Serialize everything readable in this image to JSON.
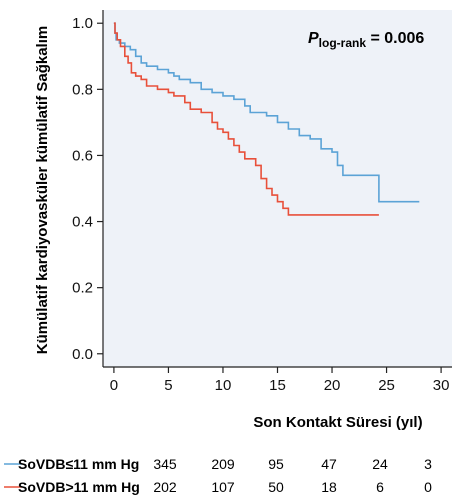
{
  "chart_data": {
    "type": "line",
    "xlabel": "Son Kontakt Süresi (yıl)",
    "ylabel": "Kümülatif kardiyovasküler kümülatif Sağkalım",
    "xlim": [
      -1,
      31
    ],
    "ylim": [
      -0.04,
      1.04
    ],
    "xticks": [
      "0",
      "5",
      "10",
      "15",
      "20",
      "25",
      "30"
    ],
    "yticks": [
      "0.0",
      "0.2",
      "0.4",
      "0.6",
      "0.8",
      "1.0"
    ],
    "grid": false,
    "background": "#eef2f8",
    "annotation": {
      "p": "P",
      "sub": "log-rank",
      "value": " = 0.006"
    },
    "series": [
      {
        "name": "SoVDB≤11 mm Hg",
        "color": "#5ba3d6",
        "points": [
          [
            0,
            1.0
          ],
          [
            0.1,
            0.97
          ],
          [
            0.2,
            0.95
          ],
          [
            0.5,
            0.94
          ],
          [
            1,
            0.93
          ],
          [
            1.5,
            0.92
          ],
          [
            2,
            0.9
          ],
          [
            2.5,
            0.88
          ],
          [
            3,
            0.87
          ],
          [
            4,
            0.86
          ],
          [
            5,
            0.85
          ],
          [
            5.5,
            0.84
          ],
          [
            6,
            0.83
          ],
          [
            7,
            0.82
          ],
          [
            8,
            0.8
          ],
          [
            9,
            0.79
          ],
          [
            10,
            0.78
          ],
          [
            11,
            0.77
          ],
          [
            12,
            0.75
          ],
          [
            12.5,
            0.73
          ],
          [
            14,
            0.72
          ],
          [
            15,
            0.7
          ],
          [
            16,
            0.68
          ],
          [
            17,
            0.66
          ],
          [
            18,
            0.65
          ],
          [
            19,
            0.62
          ],
          [
            20,
            0.61
          ],
          [
            20.5,
            0.57
          ],
          [
            21,
            0.54
          ],
          [
            23.5,
            0.54
          ],
          [
            24.3,
            0.46
          ],
          [
            28,
            0.46
          ]
        ]
      },
      {
        "name": "SoVDB>11 mm Hg",
        "color": "#e8503a",
        "points": [
          [
            0,
            1.0
          ],
          [
            0.1,
            0.97
          ],
          [
            0.3,
            0.95
          ],
          [
            0.6,
            0.93
          ],
          [
            1,
            0.9
          ],
          [
            1.3,
            0.88
          ],
          [
            1.6,
            0.85
          ],
          [
            2,
            0.84
          ],
          [
            2.5,
            0.83
          ],
          [
            3,
            0.81
          ],
          [
            4,
            0.8
          ],
          [
            5,
            0.79
          ],
          [
            5.5,
            0.78
          ],
          [
            6.5,
            0.76
          ],
          [
            7,
            0.74
          ],
          [
            8,
            0.73
          ],
          [
            9,
            0.7
          ],
          [
            9.5,
            0.68
          ],
          [
            10,
            0.67
          ],
          [
            10.5,
            0.65
          ],
          [
            11,
            0.63
          ],
          [
            11.5,
            0.61
          ],
          [
            12,
            0.59
          ],
          [
            13,
            0.57
          ],
          [
            13.5,
            0.53
          ],
          [
            14,
            0.5
          ],
          [
            14.5,
            0.48
          ],
          [
            15,
            0.46
          ],
          [
            15.5,
            0.44
          ],
          [
            16,
            0.42
          ],
          [
            18,
            0.42
          ],
          [
            24.3,
            0.42
          ]
        ]
      }
    ],
    "risk_table": {
      "rows": [
        {
          "label": "SoVDB≤11 mm Hg",
          "color": "#5ba3d6",
          "values": [
            "345",
            "209",
            "95",
            "47",
            "24",
            "3"
          ]
        },
        {
          "label": "SoVDB>11 mm Hg",
          "color": "#e8503a",
          "values": [
            "202",
            "107",
            "50",
            "18",
            "6",
            "0"
          ]
        }
      ]
    }
  }
}
